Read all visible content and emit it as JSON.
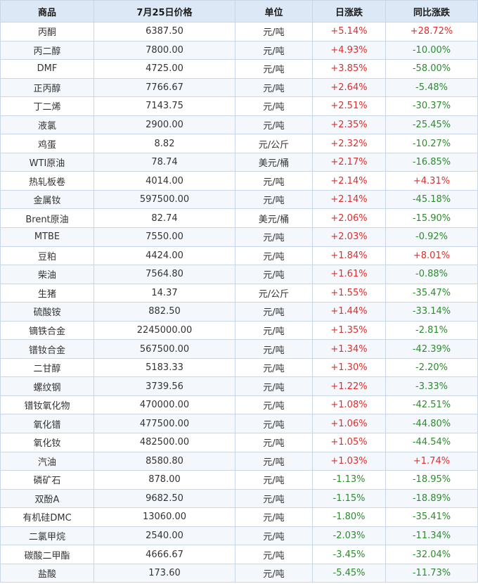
{
  "colors": {
    "header_bg": "#dde8f6",
    "border": "#c9d6e6",
    "up": "#e22c2c",
    "down": "#2f8a2f"
  },
  "table": {
    "headers": [
      "商品",
      "7月25日价格",
      "单位",
      "日涨跌",
      "同比涨跌"
    ],
    "rows": [
      {
        "name": "丙酮",
        "price": "6387.50",
        "unit": "元/吨",
        "daily": "+5.14%",
        "yoy": "+28.72%"
      },
      {
        "name": "丙二醇",
        "price": "7800.00",
        "unit": "元/吨",
        "daily": "+4.93%",
        "yoy": "-10.00%"
      },
      {
        "name": "DMF",
        "price": "4725.00",
        "unit": "元/吨",
        "daily": "+3.85%",
        "yoy": "-58.00%"
      },
      {
        "name": "正丙醇",
        "price": "7766.67",
        "unit": "元/吨",
        "daily": "+2.64%",
        "yoy": "-5.48%"
      },
      {
        "name": "丁二烯",
        "price": "7143.75",
        "unit": "元/吨",
        "daily": "+2.51%",
        "yoy": "-30.37%"
      },
      {
        "name": "液氯",
        "price": "2900.00",
        "unit": "元/吨",
        "daily": "+2.35%",
        "yoy": "-25.45%"
      },
      {
        "name": "鸡蛋",
        "price": "8.82",
        "unit": "元/公斤",
        "daily": "+2.32%",
        "yoy": "-10.27%"
      },
      {
        "name": "WTI原油",
        "price": "78.74",
        "unit": "美元/桶",
        "daily": "+2.17%",
        "yoy": "-16.85%"
      },
      {
        "name": "热轧板卷",
        "price": "4014.00",
        "unit": "元/吨",
        "daily": "+2.14%",
        "yoy": "+4.31%"
      },
      {
        "name": "金属钕",
        "price": "597500.00",
        "unit": "元/吨",
        "daily": "+2.14%",
        "yoy": "-45.18%"
      },
      {
        "name": "Brent原油",
        "price": "82.74",
        "unit": "美元/桶",
        "daily": "+2.06%",
        "yoy": "-15.90%"
      },
      {
        "name": "MTBE",
        "price": "7550.00",
        "unit": "元/吨",
        "daily": "+2.03%",
        "yoy": "-0.92%"
      },
      {
        "name": "豆粕",
        "price": "4424.00",
        "unit": "元/吨",
        "daily": "+1.84%",
        "yoy": "+8.01%"
      },
      {
        "name": "柴油",
        "price": "7564.80",
        "unit": "元/吨",
        "daily": "+1.61%",
        "yoy": "-0.88%"
      },
      {
        "name": "生猪",
        "price": "14.37",
        "unit": "元/公斤",
        "daily": "+1.55%",
        "yoy": "-35.47%"
      },
      {
        "name": "硫酸铵",
        "price": "882.50",
        "unit": "元/吨",
        "daily": "+1.44%",
        "yoy": "-33.14%"
      },
      {
        "name": "镝铁合金",
        "price": "2245000.00",
        "unit": "元/吨",
        "daily": "+1.35%",
        "yoy": "-2.81%"
      },
      {
        "name": "镨钕合金",
        "price": "567500.00",
        "unit": "元/吨",
        "daily": "+1.34%",
        "yoy": "-42.39%"
      },
      {
        "name": "二甘醇",
        "price": "5183.33",
        "unit": "元/吨",
        "daily": "+1.30%",
        "yoy": "-2.20%"
      },
      {
        "name": "螺纹钢",
        "price": "3739.56",
        "unit": "元/吨",
        "daily": "+1.22%",
        "yoy": "-3.33%"
      },
      {
        "name": "镨钕氧化物",
        "price": "470000.00",
        "unit": "元/吨",
        "daily": "+1.08%",
        "yoy": "-42.51%"
      },
      {
        "name": "氧化镨",
        "price": "477500.00",
        "unit": "元/吨",
        "daily": "+1.06%",
        "yoy": "-44.80%"
      },
      {
        "name": "氧化钕",
        "price": "482500.00",
        "unit": "元/吨",
        "daily": "+1.05%",
        "yoy": "-44.54%"
      },
      {
        "name": "汽油",
        "price": "8580.80",
        "unit": "元/吨",
        "daily": "+1.03%",
        "yoy": "+1.74%"
      },
      {
        "name": "磷矿石",
        "price": "878.00",
        "unit": "元/吨",
        "daily": "-1.13%",
        "yoy": "-18.95%"
      },
      {
        "name": "双酚A",
        "price": "9682.50",
        "unit": "元/吨",
        "daily": "-1.15%",
        "yoy": "-18.89%"
      },
      {
        "name": "有机硅DMC",
        "price": "13060.00",
        "unit": "元/吨",
        "daily": "-1.80%",
        "yoy": "-35.41%"
      },
      {
        "name": "二氯甲烷",
        "price": "2540.00",
        "unit": "元/吨",
        "daily": "-2.03%",
        "yoy": "-11.34%"
      },
      {
        "name": "碳酸二甲酯",
        "price": "4666.67",
        "unit": "元/吨",
        "daily": "-3.45%",
        "yoy": "-32.04%"
      },
      {
        "name": "盐酸",
        "price": "173.60",
        "unit": "元/吨",
        "daily": "-5.45%",
        "yoy": "-11.73%"
      }
    ]
  }
}
